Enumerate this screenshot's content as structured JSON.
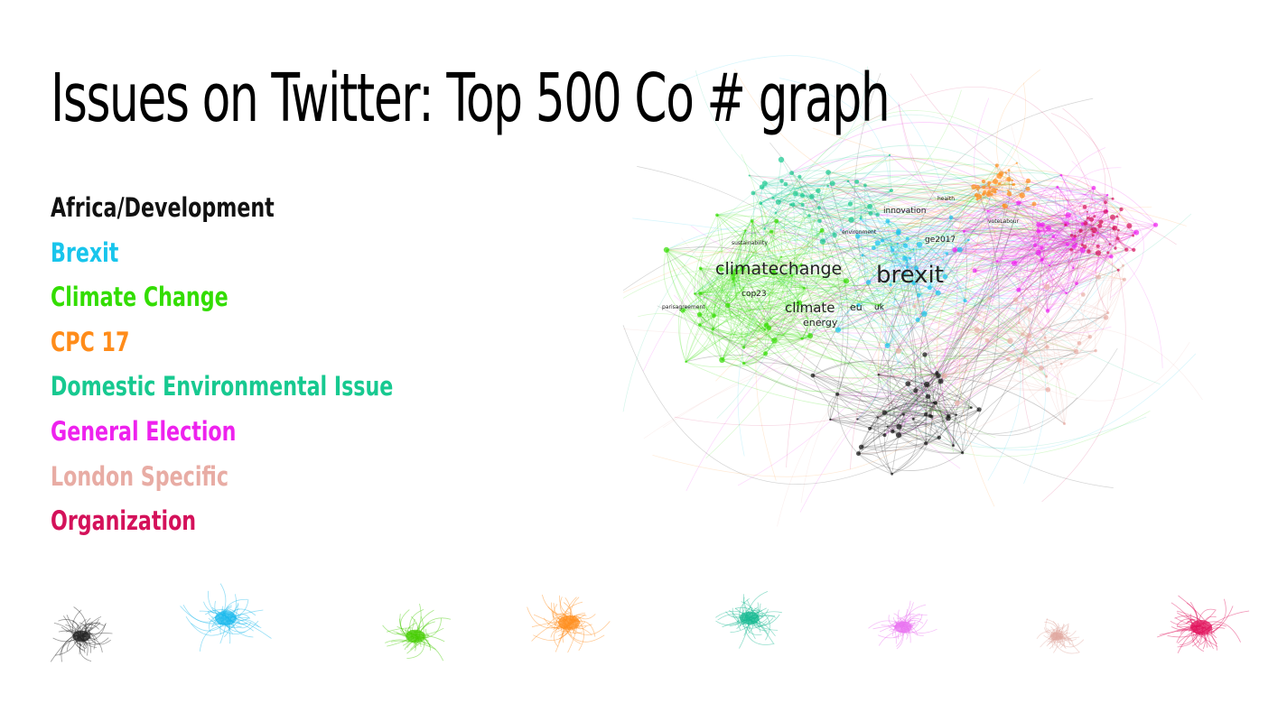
{
  "title": "Issues on Twitter: Top 500 Co # graph",
  "legend": [
    {
      "label": "Africa/Development",
      "color": "#111111"
    },
    {
      "label": "Brexit",
      "color": "#18c5ec"
    },
    {
      "label": "Climate Change",
      "color": "#33dd00"
    },
    {
      "label": "CPC 17",
      "color": "#ff8c1a"
    },
    {
      "label": "Domestic Environmental Issue",
      "color": "#17c990"
    },
    {
      "label": "General Election",
      "color": "#ee22ee"
    },
    {
      "label": "London Specific",
      "color": "#e8aca4"
    },
    {
      "label": "Organization",
      "color": "#d4115a"
    }
  ],
  "main_graph": {
    "labels": [
      {
        "text": "brexit",
        "size": "xl"
      },
      {
        "text": "climatechange",
        "size": "l"
      },
      {
        "text": "climate",
        "size": "m"
      },
      {
        "text": "energy",
        "size": "s"
      },
      {
        "text": "eu",
        "size": "s"
      },
      {
        "text": "uk",
        "size": "xs"
      },
      {
        "text": "cop23",
        "size": "xs"
      },
      {
        "text": "ge2017",
        "size": "xs"
      },
      {
        "text": "innovation",
        "size": "xs"
      },
      {
        "text": "sustainability",
        "size": "xxs"
      },
      {
        "text": "environment",
        "size": "xxs"
      },
      {
        "text": "parisagreement",
        "size": "xxs"
      },
      {
        "text": "health",
        "size": "xxs"
      },
      {
        "text": "voteLabour",
        "size": "xxs"
      }
    ]
  },
  "mini_graphs": [
    {
      "category": "Africa/Development",
      "color": "#222222"
    },
    {
      "category": "Brexit",
      "color": "#18b8ec"
    },
    {
      "category": "Climate Change",
      "color": "#44cc00"
    },
    {
      "category": "CPC 17",
      "color": "#ff8c1a"
    },
    {
      "category": "Domestic Environmental Issue",
      "color": "#14b890"
    },
    {
      "category": "General Election",
      "color": "#e870f0"
    },
    {
      "category": "London Specific",
      "color": "#e0a8a0"
    },
    {
      "category": "Organization",
      "color": "#e0105a"
    }
  ]
}
